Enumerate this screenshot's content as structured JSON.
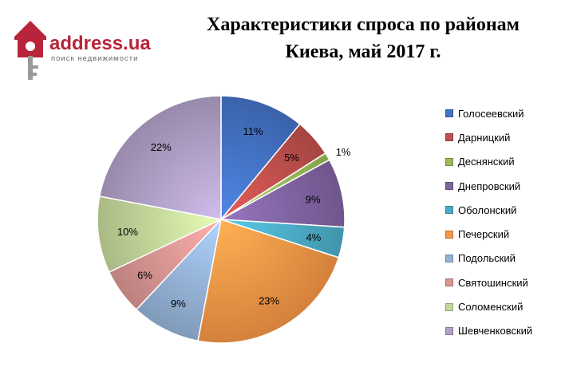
{
  "logo": {
    "brand": "address.ua",
    "tagline": "поиск недвижимости",
    "colors": {
      "primary": "#b8243a",
      "key": "#9a9a9a"
    },
    "icon": "house-key-icon"
  },
  "title": {
    "line1": "Характеристики  спроса по районам",
    "line2": "Киева, май 2017 г."
  },
  "chart_data": {
    "type": "pie",
    "title": "Характеристики спроса по районам Киева, май 2017 г.",
    "legend_position": "right",
    "slices": [
      {
        "label": "Голосеевский",
        "value": 11,
        "display": "11%",
        "color": "#4472c4"
      },
      {
        "label": "Дарницкий",
        "value": 5,
        "display": "5%",
        "color": "#c0504d"
      },
      {
        "label": "Деснянский",
        "value": 1,
        "display": "1%",
        "color": "#9bbb59"
      },
      {
        "label": "Днепровский",
        "value": 9,
        "display": "9%",
        "color": "#8064a2"
      },
      {
        "label": "Оболонский",
        "value": 4,
        "display": "4%",
        "color": "#4bacc6"
      },
      {
        "label": "Печерский",
        "value": 23,
        "display": "23%",
        "color": "#f79646"
      },
      {
        "label": "Подольский",
        "value": 9,
        "display": "9%",
        "color": "#95b3d7"
      },
      {
        "label": "Святошинский",
        "value": 6,
        "display": "6%",
        "color": "#da9694"
      },
      {
        "label": "Соломенский",
        "value": 10,
        "display": "10%",
        "color": "#c4d79b"
      },
      {
        "label": "Шевченковский",
        "value": 22,
        "display": "22%",
        "color": "#b1a0c7"
      }
    ]
  }
}
